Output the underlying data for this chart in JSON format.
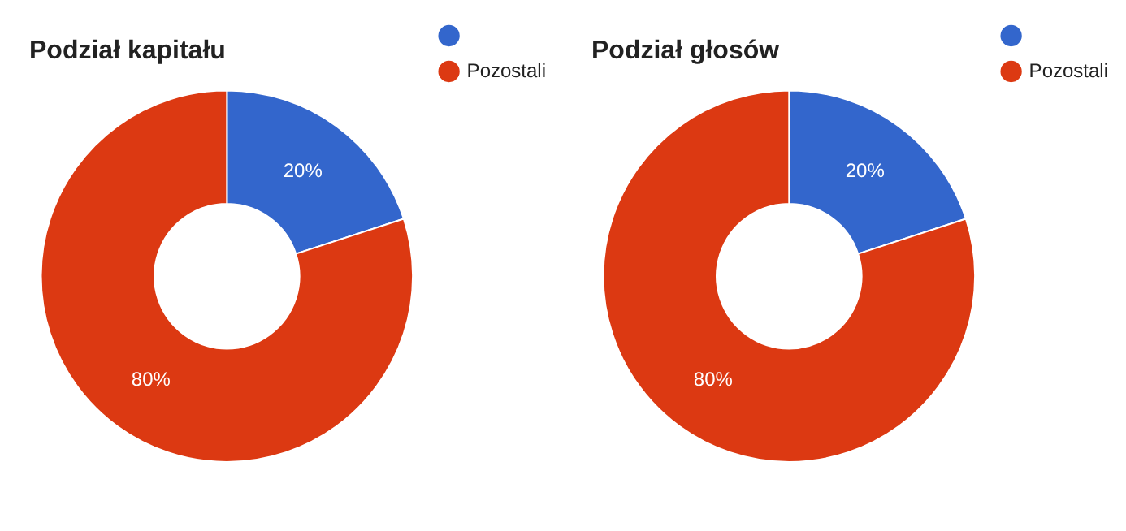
{
  "chart_data": [
    {
      "type": "donut",
      "title": "Podział kapitału",
      "categories": [
        null,
        "Pozostali"
      ],
      "values": [
        20,
        80
      ],
      "value_labels": [
        "20%",
        "80%"
      ],
      "colors": [
        "#3366cc",
        "#dc3912"
      ],
      "legend": "top right"
    },
    {
      "type": "donut",
      "title": "Podział głosów",
      "categories": [
        null,
        "Pozostali"
      ],
      "values": [
        20,
        80
      ],
      "value_labels": [
        "20%",
        "80%"
      ],
      "colors": [
        "#3366cc",
        "#dc3912"
      ],
      "legend": "top right"
    }
  ]
}
